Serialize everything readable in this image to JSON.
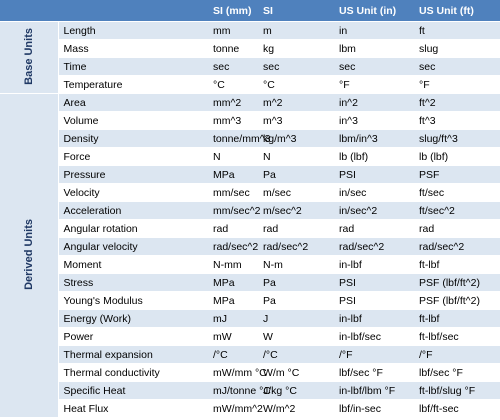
{
  "table": {
    "columns": [
      "SI (mm)",
      "SI",
      "US Unit (in)",
      "US Unit (ft)"
    ],
    "groups": [
      {
        "label": "Base Units",
        "rows": [
          [
            "Length",
            "mm",
            "m",
            "in",
            "ft"
          ],
          [
            "Mass",
            "tonne",
            "kg",
            "lbm",
            "slug"
          ],
          [
            "Time",
            "sec",
            "sec",
            "sec",
            "sec"
          ],
          [
            "Temperature",
            "°C",
            "°C",
            "°F",
            "°F"
          ]
        ]
      },
      {
        "label": "Derived Units",
        "rows": [
          [
            "Area",
            "mm^2",
            "m^2",
            "in^2",
            "ft^2"
          ],
          [
            "Volume",
            "mm^3",
            "m^3",
            "in^3",
            "ft^3"
          ],
          [
            "Density",
            "tonne/mm^3",
            "kg/m^3",
            "lbm/in^3",
            "slug/ft^3"
          ],
          [
            "Force",
            "N",
            "N",
            "lb (lbf)",
            "lb (lbf)"
          ],
          [
            "Pressure",
            "MPa",
            "Pa",
            "PSI",
            "PSF"
          ],
          [
            "Velocity",
            "mm/sec",
            "m/sec",
            "in/sec",
            "ft/sec"
          ],
          [
            "Acceleration",
            "mm/sec^2",
            "m/sec^2",
            "in/sec^2",
            "ft/sec^2"
          ],
          [
            "Angular rotation",
            "rad",
            "rad",
            "rad",
            "rad"
          ],
          [
            "Angular velocity",
            "rad/sec^2",
            "rad/sec^2",
            "rad/sec^2",
            "rad/sec^2"
          ],
          [
            "Moment",
            "N-mm",
            "N-m",
            "in-lbf",
            "ft-lbf"
          ],
          [
            "Stress",
            "MPa",
            "Pa",
            "PSI",
            "PSF (lbf/ft^2)"
          ],
          [
            "Young's Modulus",
            "MPa",
            "Pa",
            "PSI",
            "PSF (lbf/ft^2)"
          ],
          [
            "Energy (Work)",
            "mJ",
            "J",
            "in-lbf",
            "ft-lbf"
          ],
          [
            "Power",
            "mW",
            "W",
            "in-lbf/sec",
            "ft-lbf/sec"
          ],
          [
            "Thermal expansion",
            "/°C",
            "/°C",
            "/°F",
            "/°F"
          ],
          [
            "Thermal conductivity",
            "mW/mm °C",
            "W/m °C",
            "lbf/sec °F",
            "lbf/sec °F"
          ],
          [
            "Specific Heat",
            "mJ/tonne °C",
            "J/kg °C",
            "in-lbf/lbm °F",
            "ft-lbf/slug °F"
          ],
          [
            "Heat Flux",
            "mW/mm^2",
            "W/m^2",
            "lbf/in-sec",
            "lbf/ft-sec"
          ]
        ]
      }
    ]
  }
}
